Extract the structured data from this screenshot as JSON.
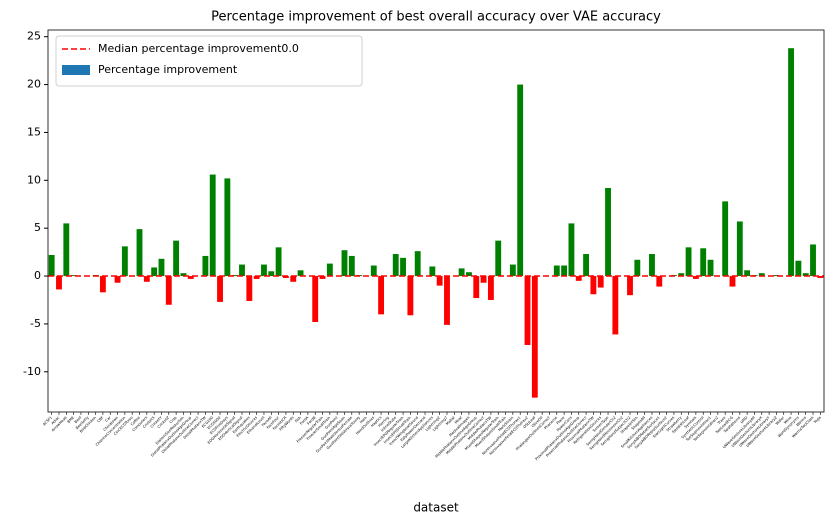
{
  "chart_data": {
    "type": "bar",
    "title": "Percentage improvement of best overall accuracy over VAE accuracy",
    "xlabel": "dataset",
    "categories": [
      "ACSF1",
      "Adiac",
      "ArrowHead",
      "BME",
      "Beef",
      "BeetleFly",
      "BirdChicken",
      "CBF",
      "Car",
      "Chinatown",
      "ChlorineConcentration",
      "CinCECGTorso",
      "Coffee",
      "Computers",
      "CricketX",
      "CricketY",
      "CricketZ",
      "Crop",
      "DiatomSizeReduction",
      "DistalPhalanxOutlineAgeGroup",
      "DistalPhalanxOutlineCorrect",
      "DistalPhalanxTW",
      "ECG200",
      "ECG5000",
      "ECGFiveDays",
      "EOGHorizontalSignal",
      "EOGVerticalSignal",
      "Earthquakes",
      "ElectricDevices",
      "EthanolLevel",
      "FaceAll",
      "FaceFour",
      "FacesUCR",
      "FiftyWords",
      "Fish",
      "FordA",
      "FordB",
      "FreezerRegularTrain",
      "FreezerSmallTrain",
      "GunPoint",
      "GunPointAgeSpan",
      "GunPointMaleVersusFemale",
      "GunPointOldVersusYoung",
      "Ham",
      "HandOutlines",
      "Haptics",
      "Herring",
      "InlineSkate",
      "InsectEPGRegularTrain",
      "InsectEPGSmallTrain",
      "InsectWingbeatSound",
      "ItalyPowerDemand",
      "LargeKitchenAppliances",
      "Lightning2",
      "Lightning7",
      "Mallat",
      "Meat",
      "MedicalImages",
      "MiddlePhalanxOutlineAgeGroup",
      "MiddlePhalanxOutlineCorrect",
      "MiddlePhalanxTW",
      "MixedShapesRegularTrain",
      "MixedShapesSmallTrain",
      "MoteStrain",
      "NonInvasiveFetalECGThorax1",
      "NonInvasiveFetalECGThorax2",
      "OSULeaf",
      "OliveOil",
      "PhalangesOutlinesCorrect",
      "Phoneme",
      "Plane",
      "PowerCons",
      "ProximalPhalanxOutlineAgeGroup",
      "ProximalPhalanxOutlineCorrect",
      "ProximalPhalanxTW",
      "RefrigerationDevices",
      "ScreenType",
      "SemgHandGenderCh2",
      "SemgHandMovementCh2",
      "SemgHandSubjectCh2",
      "ShapeletSim",
      "ShapesAll",
      "SmallKitchenAppliances",
      "SonyAIBORobotSurface1",
      "SonyAIBORobotSurface2",
      "StarLightCurves",
      "Strawberry",
      "SwedishLeaf",
      "Symbols",
      "SyntheticControl",
      "ToeSegmentation1",
      "ToeSegmentation2",
      "Trace",
      "TwoLeadECG",
      "TwoPatterns",
      "UMD",
      "UWaveGestureLibraryAll",
      "UWaveGestureLibraryX",
      "UWaveGestureLibraryY",
      "UWaveGestureLibraryZ",
      "Wafer",
      "Wine",
      "WordSynonyms",
      "Worms",
      "WormsTwoClass",
      "Yoga"
    ],
    "series": [
      {
        "name": "Percentage improvement",
        "color": "#1f77b4",
        "values": [
          2.2,
          -1.4,
          5.5,
          0.1,
          0,
          0,
          0.1,
          -1.7,
          0,
          -0.7,
          3.1,
          0,
          4.9,
          -0.6,
          0.9,
          1.8,
          -3.0,
          3.7,
          0.3,
          -0.3,
          0,
          2.1,
          10.6,
          -2.7,
          10.2,
          0.1,
          1.2,
          -2.6,
          -0.3,
          1.2,
          0.5,
          3.0,
          -0.2,
          -0.6,
          0.6,
          0,
          -4.8,
          -0.3,
          1.3,
          0,
          2.7,
          2.1,
          0.1,
          0,
          1.1,
          -4.0,
          0,
          2.3,
          1.9,
          -4.1,
          2.6,
          0,
          1.0,
          -1.0,
          -5.1,
          0,
          0.8,
          0.4,
          -2.3,
          -0.7,
          -2.5,
          3.7,
          0,
          1.2,
          20.0,
          -7.2,
          -12.7,
          0,
          0,
          1.1,
          1.1,
          5.5,
          -0.5,
          2.3,
          -1.9,
          -1.2,
          9.2,
          -6.1,
          0,
          -2.0,
          1.7,
          0,
          2.3,
          -1.1,
          0,
          0.1,
          0.3,
          3.0,
          -0.3,
          2.9,
          1.7,
          0,
          7.8,
          -1.1,
          5.7,
          0.6,
          0.1,
          0.3,
          0,
          0.1,
          0,
          23.8,
          1.6,
          0.3,
          3.3,
          -0.2
        ]
      }
    ],
    "bar_colors": {
      "positive": "green",
      "negative": "red"
    },
    "reference_line": {
      "name": "Median percentage improvement0.0",
      "value": 0,
      "color": "red",
      "style": "dashed"
    },
    "ylim": [
      -14.2,
      25.7
    ],
    "yticks": [
      -10,
      -5,
      0,
      5,
      10,
      15,
      20,
      25
    ],
    "legend": "upper left"
  }
}
